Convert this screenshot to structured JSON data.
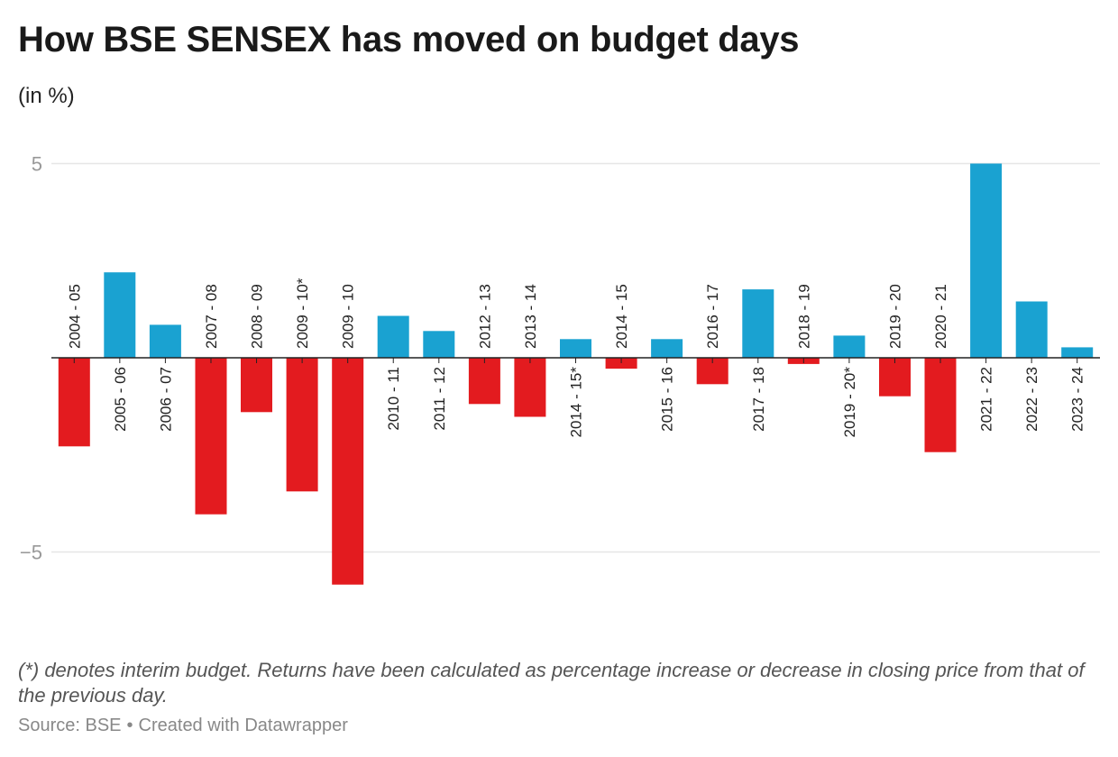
{
  "title": "How BSE SENSEX has moved on budget days",
  "subtitle": "(in %)",
  "note": "(*) denotes interim budget. Returns have been calculated as percentage increase or decrease in closing price from that of the previous day.",
  "source_label": "Source: BSE",
  "credit": "Created with Datawrapper",
  "colors": {
    "positive": "#1aa2d1",
    "negative": "#e31b1f",
    "grid": "#e6e6e6",
    "axis": "#222222",
    "tick_label": "#999999"
  },
  "chart_data": {
    "type": "bar",
    "title": "How BSE SENSEX has moved on budget days",
    "subtitle": "(in %)",
    "ylabel": "",
    "xlabel": "",
    "ylim": [
      -5.9,
      5
    ],
    "yticks": [
      5,
      -5
    ],
    "ytick_labels": [
      "5",
      "−5"
    ],
    "grid": true,
    "categories": [
      "2004 - 05",
      "2005 - 06",
      "2006 - 07",
      "2007 - 08",
      "2008 - 09",
      "2009 - 10*",
      "2009 - 10",
      "2010 - 11",
      "2011 - 12",
      "2012 - 13",
      "2013 - 14",
      "2014 - 15*",
      "2014 - 15",
      "2015 - 16",
      "2016 - 17",
      "2017 - 18",
      "2018 - 19",
      "2019 - 20*",
      "2019 - 20",
      "2020 - 21",
      "2021 - 22",
      "2022 - 23",
      "2023 - 24"
    ],
    "values": [
      -2.28,
      2.2,
      0.85,
      -4.03,
      -1.4,
      -3.44,
      -5.84,
      1.08,
      0.69,
      -1.19,
      -1.52,
      0.48,
      -0.28,
      0.48,
      -0.68,
      1.76,
      -0.16,
      0.57,
      -0.99,
      -2.43,
      5.0,
      1.45,
      0.27
    ]
  }
}
